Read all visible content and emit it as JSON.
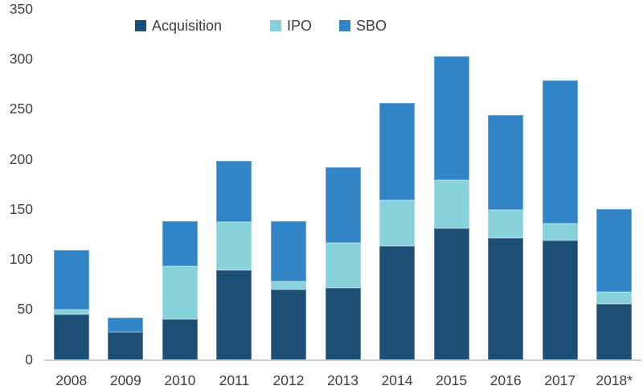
{
  "chart_data": {
    "type": "bar",
    "stacked": true,
    "title": "",
    "xlabel": "",
    "ylabel": "",
    "categories": [
      "2008",
      "2009",
      "2010",
      "2011",
      "2012",
      "2013",
      "2014",
      "2015",
      "2016",
      "2017",
      "2018*"
    ],
    "series": [
      {
        "name": "Acquisition",
        "color": "#1d4e76",
        "values": [
          46,
          28,
          41,
          90,
          71,
          72,
          114,
          132,
          122,
          120,
          56
        ]
      },
      {
        "name": "IPO",
        "color": "#87d1db",
        "values": [
          5,
          0,
          53,
          48,
          8,
          45,
          46,
          48,
          28,
          17,
          12
        ]
      },
      {
        "name": "SBO",
        "color": "#3185c6",
        "values": [
          59,
          15,
          45,
          61,
          60,
          76,
          97,
          124,
          95,
          143,
          83
        ]
      }
    ],
    "totals": [
      110,
      43,
      139,
      199,
      139,
      193,
      257,
      304,
      245,
      280,
      151
    ],
    "ylim": [
      0,
      350
    ],
    "yticks": [
      0,
      50,
      100,
      150,
      200,
      250,
      300,
      350
    ],
    "grid": false,
    "legend_position": "top"
  },
  "colors": {
    "background": "#ffffff",
    "axis_line": "#c6cacd",
    "text": "#404040"
  }
}
